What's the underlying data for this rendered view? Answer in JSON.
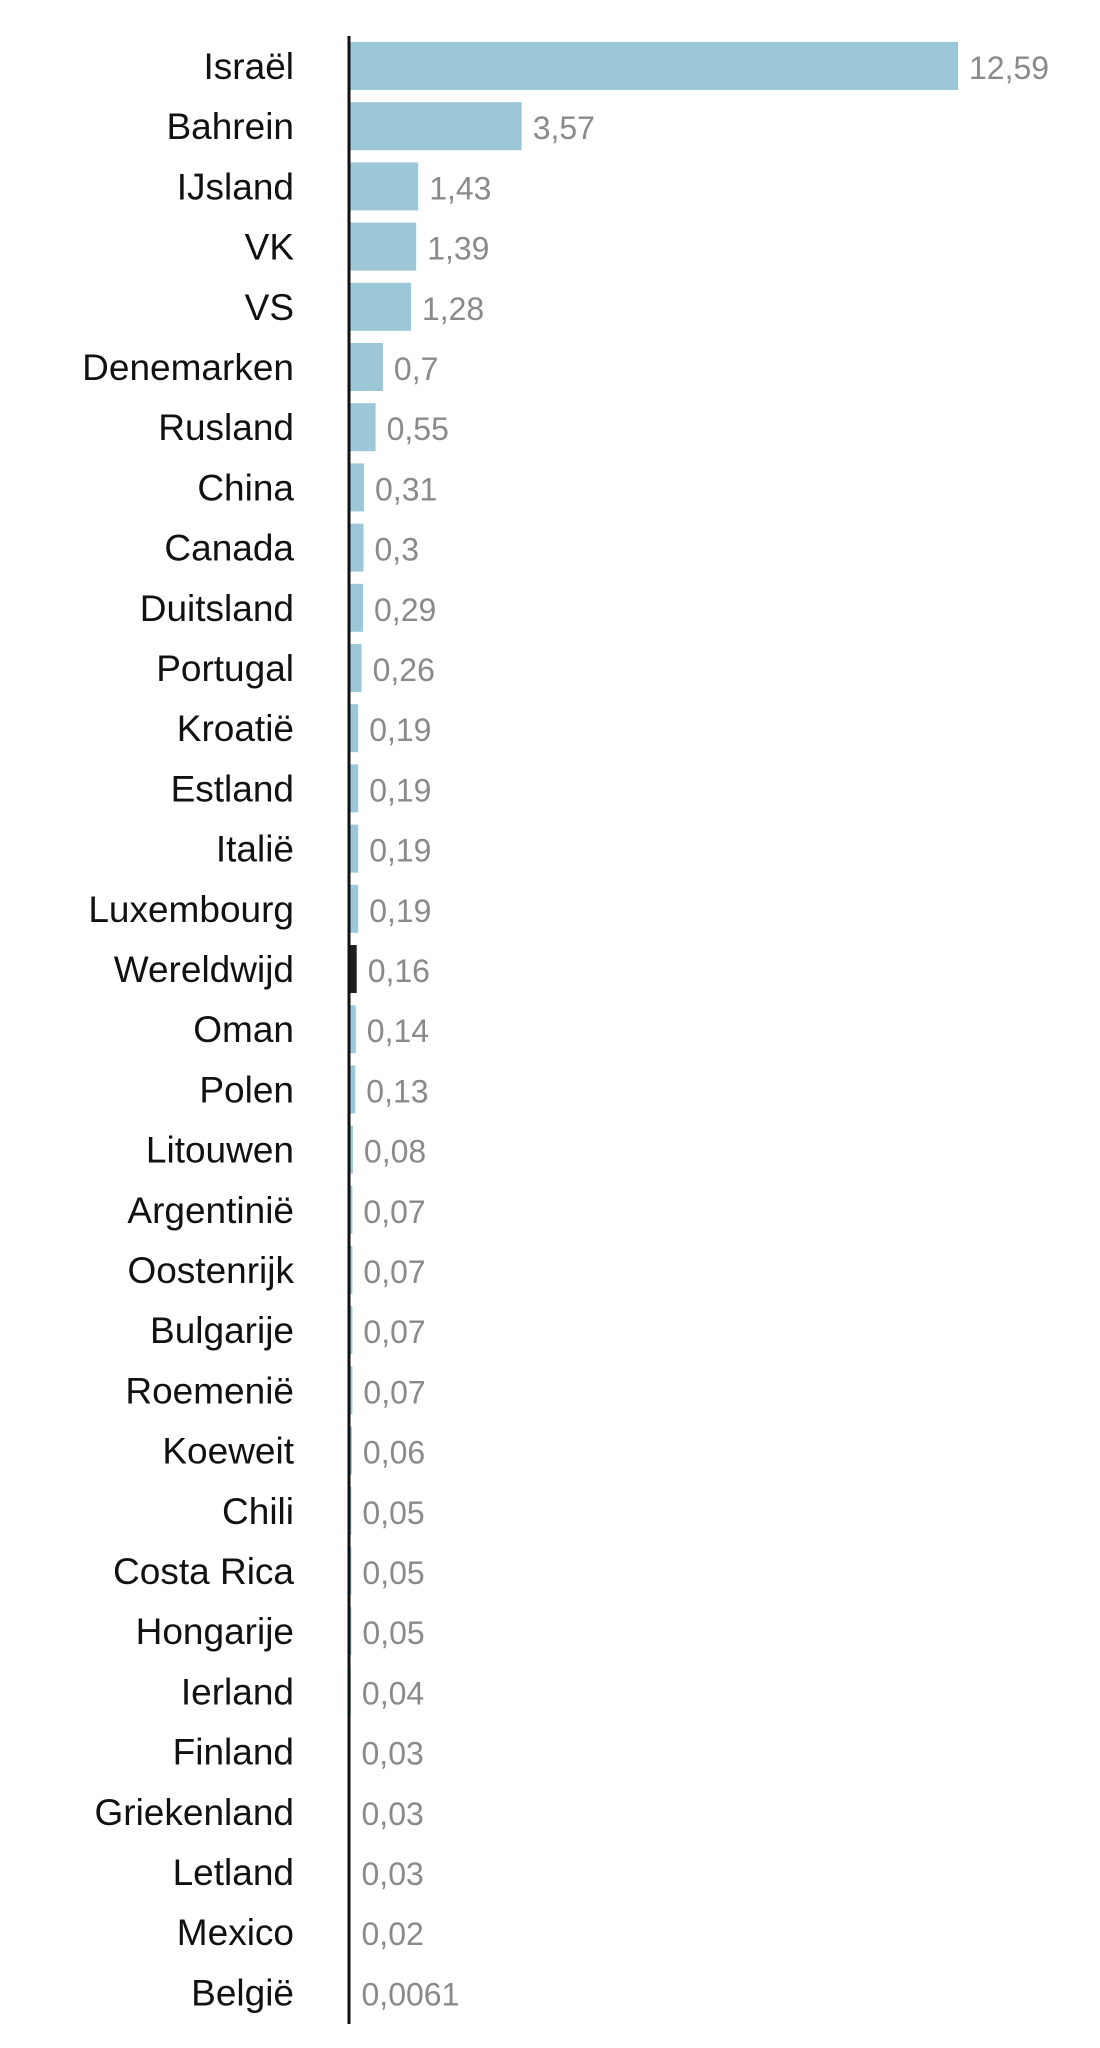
{
  "chart_data": {
    "type": "bar",
    "orientation": "horizontal",
    "categories": [
      "Israël",
      "Bahrein",
      "IJsland",
      "VK",
      "VS",
      "Denemarken",
      "Rusland",
      "China",
      "Canada",
      "Duitsland",
      "Portugal",
      "Kroatië",
      "Estland",
      "Italië",
      "Luxembourg",
      "Wereldwijd",
      "Oman",
      "Polen",
      "Litouwen",
      "Argentinië",
      "Oostenrijk",
      "Bulgarije",
      "Roemenië",
      "Koeweit",
      "Chili",
      "Costa Rica",
      "Hongarije",
      "Ierland",
      "Finland",
      "Griekenland",
      "Letland",
      "Mexico",
      "België"
    ],
    "values": [
      12.59,
      3.57,
      1.43,
      1.39,
      1.28,
      0.7,
      0.55,
      0.31,
      0.3,
      0.29,
      0.26,
      0.19,
      0.19,
      0.19,
      0.19,
      0.16,
      0.14,
      0.13,
      0.08,
      0.07,
      0.07,
      0.07,
      0.07,
      0.06,
      0.05,
      0.05,
      0.05,
      0.04,
      0.03,
      0.03,
      0.03,
      0.02,
      0.0061
    ],
    "value_labels": [
      "12,59",
      "3,57",
      "1,43",
      "1,39",
      "1,28",
      "0,7",
      "0,55",
      "0,31",
      "0,3",
      "0,29",
      "0,26",
      "0,19",
      "0,19",
      "0,19",
      "0,19",
      "0,16",
      "0,14",
      "0,13",
      "0,08",
      "0,07",
      "0,07",
      "0,07",
      "0,07",
      "0,06",
      "0,05",
      "0,05",
      "0,05",
      "0,04",
      "0,03",
      "0,03",
      "0,03",
      "0,02",
      "0,0061"
    ],
    "highlight_category": "Wereldwijd",
    "colors": {
      "bar": "#9cc7d6",
      "highlight": "#1e1e1e",
      "axis": "#111111",
      "value_text": "#8a8a8a",
      "category_text": "#111111"
    },
    "title": "",
    "xlabel": "",
    "ylabel": "",
    "xlim": [
      0,
      13
    ],
    "grid": false,
    "legend": "none"
  }
}
